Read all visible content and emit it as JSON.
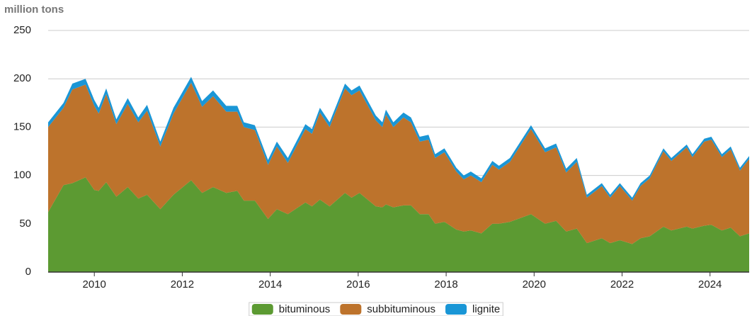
{
  "chart_data": {
    "type": "stacked_area",
    "y_axis_title": "million tons",
    "x": [
      2008.95,
      2009.3,
      2009.5,
      2009.8,
      2010.0,
      2010.1,
      2010.27,
      2010.5,
      2010.76,
      2011.0,
      2011.2,
      2011.5,
      2011.8,
      2012.2,
      2012.45,
      2012.7,
      2013.0,
      2013.25,
      2013.4,
      2013.65,
      2013.95,
      2014.15,
      2014.4,
      2014.8,
      2014.95,
      2015.13,
      2015.35,
      2015.7,
      2015.85,
      2016.03,
      2016.4,
      2016.55,
      2016.63,
      2016.8,
      2017.03,
      2017.2,
      2017.4,
      2017.6,
      2017.75,
      2017.96,
      2018.23,
      2018.4,
      2018.56,
      2018.8,
      2019.05,
      2019.2,
      2019.45,
      2019.93,
      2020.25,
      2020.5,
      2020.73,
      2020.97,
      2021.2,
      2021.54,
      2021.73,
      2021.95,
      2022.23,
      2022.42,
      2022.63,
      2022.94,
      2023.12,
      2023.47,
      2023.6,
      2023.87,
      2024.03,
      2024.27,
      2024.47,
      2024.68,
      2024.89
    ],
    "series": [
      {
        "name": "bituminous",
        "color": "#5c9a32",
        "values": [
          62,
          90,
          92,
          98,
          85,
          84,
          93,
          78,
          88,
          76,
          80,
          65,
          80,
          95,
          82,
          88,
          82,
          84,
          74,
          74,
          55,
          65,
          60,
          72,
          68,
          75,
          68,
          82,
          77,
          82,
          68,
          67,
          70,
          67,
          69,
          69,
          60,
          60,
          50,
          52,
          44,
          42,
          43,
          40,
          50,
          50,
          52,
          60,
          50,
          53,
          42,
          45,
          30,
          35,
          30,
          33,
          29,
          35,
          37,
          47,
          43,
          47,
          45,
          48,
          49,
          43,
          46,
          37,
          40
        ]
      },
      {
        "name": "subbituminous",
        "color": "#bd732c",
        "values": [
          88,
          80,
          97,
          96,
          87,
          80,
          91,
          75,
          86,
          79,
          87,
          65,
          84,
          101,
          89,
          94,
          84,
          82,
          76,
          73,
          56,
          65,
          53,
          76,
          75,
          90,
          82,
          108,
          106,
          106,
          89,
          83,
          93,
          83,
          91,
          86,
          75,
          77,
          68,
          72,
          60,
          54,
          57,
          53,
          61,
          56,
          62,
          88,
          74,
          76,
          61,
          69,
          47,
          54,
          47,
          56,
          45,
          54,
          60,
          78,
          72,
          82,
          74,
          87,
          88,
          76,
          81,
          68,
          77
        ]
      },
      {
        "name": "lignite",
        "color": "#1a96d6",
        "values": [
          5,
          5,
          6,
          6,
          6,
          6,
          6,
          5,
          6,
          5,
          6,
          5,
          6,
          6,
          6,
          6,
          6,
          6,
          5,
          5,
          5,
          5,
          5,
          5,
          5,
          5,
          5,
          5,
          5,
          5,
          5,
          5,
          5,
          5,
          5,
          5,
          5,
          5,
          4,
          4,
          4,
          4,
          4,
          4,
          4,
          4,
          4,
          4,
          4,
          4,
          4,
          4,
          3,
          3,
          3,
          3,
          3,
          3,
          3,
          3,
          3,
          3,
          3,
          3,
          3,
          3,
          3,
          3,
          3
        ]
      }
    ],
    "xlim": [
      2008.95,
      2024.89
    ],
    "xticks": [
      2010,
      2012,
      2014,
      2016,
      2018,
      2020,
      2022,
      2024
    ],
    "ylim": [
      0,
      250
    ],
    "yticks": [
      0,
      50,
      100,
      150,
      200,
      250
    ],
    "grid": true,
    "legend": "bottom"
  }
}
